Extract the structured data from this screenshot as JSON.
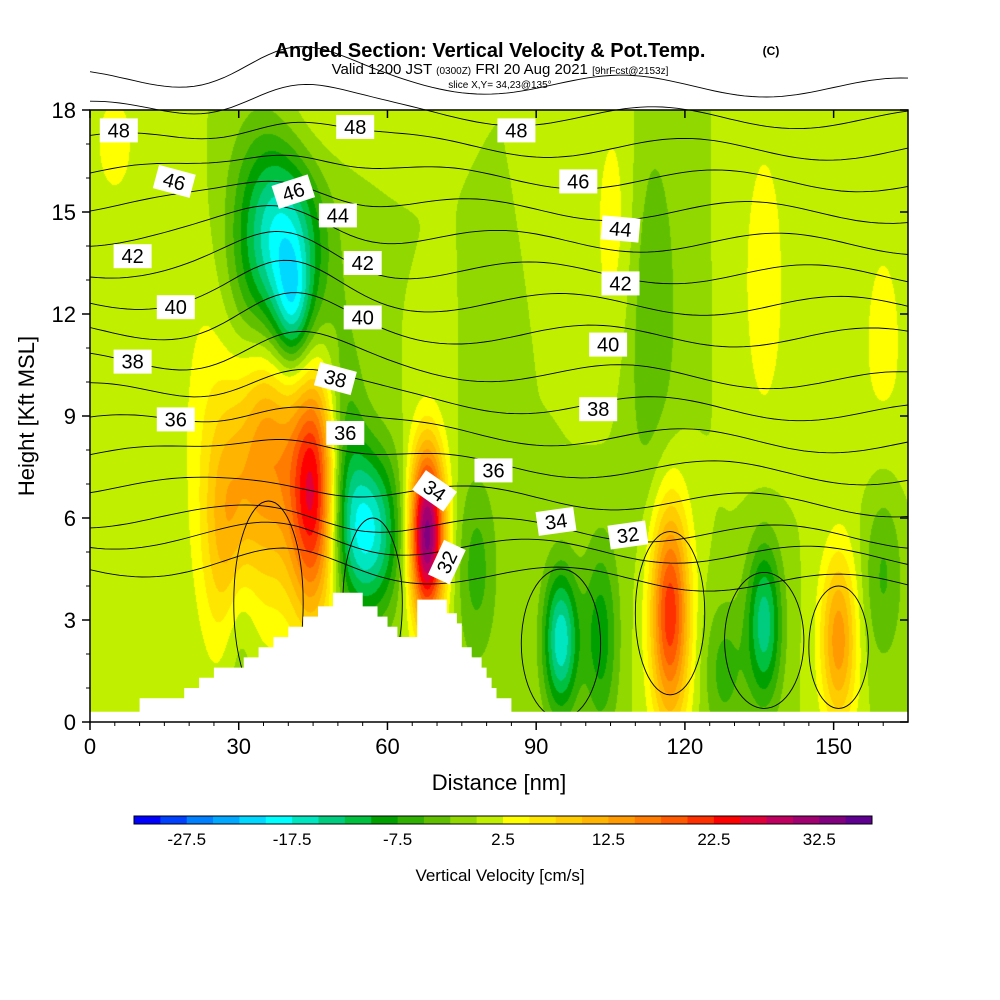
{
  "title": {
    "main": "Angled Section: Vertical Velocity & Pot.Temp.",
    "units_tag": "(C)",
    "valid_prefix": "Valid 1200 JST",
    "valid_zulu": "(0300Z)",
    "valid_date": "FRI 20 Aug 2021",
    "forecast_tag": "[9hrFcst@2153z]",
    "slice": "slice X,Y= 34,23@135°"
  },
  "chart_data": {
    "type": "heatmap",
    "title": "Angled Section: Vertical Velocity & Pot.Temp.",
    "xlabel": "Distance [nm]",
    "ylabel": "Height [Kft MSL]",
    "xlim": [
      0,
      165
    ],
    "ylim": [
      0,
      18
    ],
    "x_ticks": [
      0,
      30,
      60,
      90,
      120,
      150
    ],
    "y_ticks": [
      0,
      3,
      6,
      9,
      12,
      15,
      18
    ],
    "fill_variable": "Vertical Velocity [cm/s]",
    "contour_variable": "Potential Temperature (C)",
    "background_value": 0,
    "updraft_cells": [
      {
        "x": 36,
        "z": 8.5,
        "wx": 4.0,
        "wz": 3.2,
        "peak": 15
      },
      {
        "x": 45,
        "z": 6.8,
        "wx": 3.5,
        "wz": 2.6,
        "peak": 26
      },
      {
        "x": 68,
        "z": 5.5,
        "wx": 2.5,
        "wz": 1.8,
        "peak": 34
      },
      {
        "x": 117,
        "z": 3.2,
        "wx": 2.8,
        "wz": 2.3,
        "peak": 22
      },
      {
        "x": 151,
        "z": 2.4,
        "wx": 2.6,
        "wz": 1.8,
        "peak": 14
      },
      {
        "x": 28,
        "z": 5.5,
        "wx": 3.5,
        "wz": 2.5,
        "peak": 10
      },
      {
        "x": 25,
        "z": 9.0,
        "wx": 5.0,
        "wz": 4.0,
        "peak": 4
      },
      {
        "x": 42,
        "z": 17.5,
        "wx": 6.0,
        "wz": 1.5,
        "peak": 5
      },
      {
        "x": 106,
        "z": 14.5,
        "wx": 3.5,
        "wz": 3.0,
        "peak": 4
      },
      {
        "x": 136,
        "z": 13.0,
        "wx": 3.5,
        "wz": 3.5,
        "peak": 4
      },
      {
        "x": 160,
        "z": 11.0,
        "wx": 5.0,
        "wz": 4.0,
        "peak": 3
      },
      {
        "x": 5,
        "z": 17.0,
        "wx": 5.0,
        "wz": 2.0,
        "peak": 3
      }
    ],
    "downdraft_cells": [
      {
        "x": 38,
        "z": 13.8,
        "wx": 6.0,
        "wz": 2.6,
        "peak": -22
      },
      {
        "x": 41,
        "z": 12.2,
        "wx": 2.5,
        "wz": 1.2,
        "peak": -8
      },
      {
        "x": 56,
        "z": 5.6,
        "wx": 4.5,
        "wz": 1.7,
        "peak": -18
      },
      {
        "x": 95,
        "z": 2.4,
        "wx": 2.5,
        "wz": 1.5,
        "peak": -17
      },
      {
        "x": 136,
        "z": 2.9,
        "wx": 2.5,
        "wz": 1.7,
        "peak": -14
      },
      {
        "x": 103,
        "z": 2.5,
        "wx": 2.5,
        "wz": 2.0,
        "peak": -9
      },
      {
        "x": 78,
        "z": 4.5,
        "wx": 3.0,
        "wz": 2.0,
        "peak": -6
      },
      {
        "x": 51,
        "z": 8.0,
        "wx": 3.0,
        "wz": 2.5,
        "peak": -7
      },
      {
        "x": 30,
        "z": 3.0,
        "wx": 2.5,
        "wz": 2.0,
        "peak": -5
      },
      {
        "x": 128,
        "z": 1.5,
        "wx": 3.0,
        "wz": 1.5,
        "peak": -6
      },
      {
        "x": 113,
        "z": 12.0,
        "wx": 4.0,
        "wz": 4.0,
        "peak": -5
      },
      {
        "x": 160,
        "z": 4.5,
        "wx": 3.0,
        "wz": 2.0,
        "peak": -6
      }
    ],
    "terrain_height_kft": [
      [
        0,
        0.3
      ],
      [
        9,
        0.3
      ],
      [
        10,
        0.7
      ],
      [
        18,
        0.7
      ],
      [
        19,
        1.0
      ],
      [
        21,
        1.0
      ],
      [
        22,
        1.3
      ],
      [
        24,
        1.3
      ],
      [
        25,
        1.6
      ],
      [
        30,
        1.6
      ],
      [
        31,
        1.9
      ],
      [
        33,
        1.9
      ],
      [
        34,
        2.2
      ],
      [
        36,
        2.2
      ],
      [
        37,
        2.5
      ],
      [
        39,
        2.5
      ],
      [
        40,
        2.8
      ],
      [
        42,
        2.8
      ],
      [
        43,
        3.1
      ],
      [
        45,
        3.1
      ],
      [
        46,
        3.4
      ],
      [
        48,
        3.4
      ],
      [
        49,
        3.8
      ],
      [
        54,
        3.8
      ],
      [
        55,
        3.4
      ],
      [
        57,
        3.4
      ],
      [
        58,
        3.1
      ],
      [
        59,
        3.1
      ],
      [
        60,
        2.8
      ],
      [
        61,
        2.8
      ],
      [
        62,
        2.5
      ],
      [
        65,
        2.5
      ],
      [
        66,
        3.6
      ],
      [
        71,
        3.6
      ],
      [
        72,
        3.2
      ],
      [
        73,
        3.2
      ],
      [
        74,
        2.9
      ],
      [
        75,
        2.2
      ],
      [
        77,
        1.9
      ],
      [
        79,
        1.6
      ],
      [
        80,
        1.3
      ],
      [
        81,
        1.0
      ],
      [
        82,
        0.7
      ],
      [
        84,
        0.7
      ],
      [
        85,
        0.3
      ],
      [
        165,
        0.3
      ]
    ],
    "theta_contour_range": [
      30,
      48
    ],
    "theta_contour_interval": 1,
    "theta_contour_labels": [
      {
        "text": "48",
        "x": 5.8,
        "z": 17.4,
        "angle": 0
      },
      {
        "text": "48",
        "x": 53.5,
        "z": 17.5,
        "angle": 0
      },
      {
        "text": "48",
        "x": 86,
        "z": 17.4,
        "angle": 0
      },
      {
        "text": "46",
        "x": 17,
        "z": 15.9,
        "angle": 15
      },
      {
        "text": "46",
        "x": 41,
        "z": 15.6,
        "angle": -18
      },
      {
        "text": "46",
        "x": 98.5,
        "z": 15.9,
        "angle": 0
      },
      {
        "text": "44",
        "x": 50,
        "z": 14.9,
        "angle": 0
      },
      {
        "text": "44",
        "x": 107,
        "z": 14.5,
        "angle": 5
      },
      {
        "text": "42",
        "x": 8.6,
        "z": 13.7,
        "angle": 0
      },
      {
        "text": "42",
        "x": 55,
        "z": 13.5,
        "angle": 0
      },
      {
        "text": "42",
        "x": 107,
        "z": 12.9,
        "angle": 0
      },
      {
        "text": "40",
        "x": 17.3,
        "z": 12.2,
        "angle": 0
      },
      {
        "text": "40",
        "x": 55,
        "z": 11.9,
        "angle": 0
      },
      {
        "text": "40",
        "x": 104.5,
        "z": 11.1,
        "angle": 0
      },
      {
        "text": "38",
        "x": 8.6,
        "z": 10.6,
        "angle": 0
      },
      {
        "text": "38",
        "x": 49.5,
        "z": 10.1,
        "angle": 15
      },
      {
        "text": "38",
        "x": 102.5,
        "z": 9.2,
        "angle": 0
      },
      {
        "text": "36",
        "x": 17.3,
        "z": 8.9,
        "angle": 0
      },
      {
        "text": "36",
        "x": 51.5,
        "z": 8.5,
        "angle": 0
      },
      {
        "text": "36",
        "x": 81.4,
        "z": 7.4,
        "angle": 0
      },
      {
        "text": "34",
        "x": 69.5,
        "z": 6.8,
        "angle": 35
      },
      {
        "text": "34",
        "x": 94,
        "z": 5.9,
        "angle": -8
      },
      {
        "text": "32",
        "x": 108.5,
        "z": 5.5,
        "angle": -8
      },
      {
        "text": "32",
        "x": 72,
        "z": 4.7,
        "angle": -65
      }
    ]
  },
  "colorbar": {
    "label": "Vertical Velocity [cm/s]",
    "tick_labels": [
      "-27.5",
      "-17.5",
      "-7.5",
      "2.5",
      "12.5",
      "22.5",
      "32.5"
    ],
    "bounds": [
      -32.5,
      37.5
    ],
    "step": 2.5,
    "colors": [
      "#0000ff",
      "#0040ff",
      "#0080ff",
      "#00a8ff",
      "#00d8ff",
      "#00ffff",
      "#00e6c0",
      "#00cc80",
      "#00c040",
      "#00a000",
      "#30b000",
      "#60c000",
      "#90d800",
      "#c0f000",
      "#ffff00",
      "#ffe600",
      "#ffcc00",
      "#ffb400",
      "#ff9a00",
      "#ff7c00",
      "#ff5a00",
      "#ff3000",
      "#ff0000",
      "#e0003a",
      "#c00060",
      "#a00070",
      "#800080",
      "#600090"
    ]
  }
}
